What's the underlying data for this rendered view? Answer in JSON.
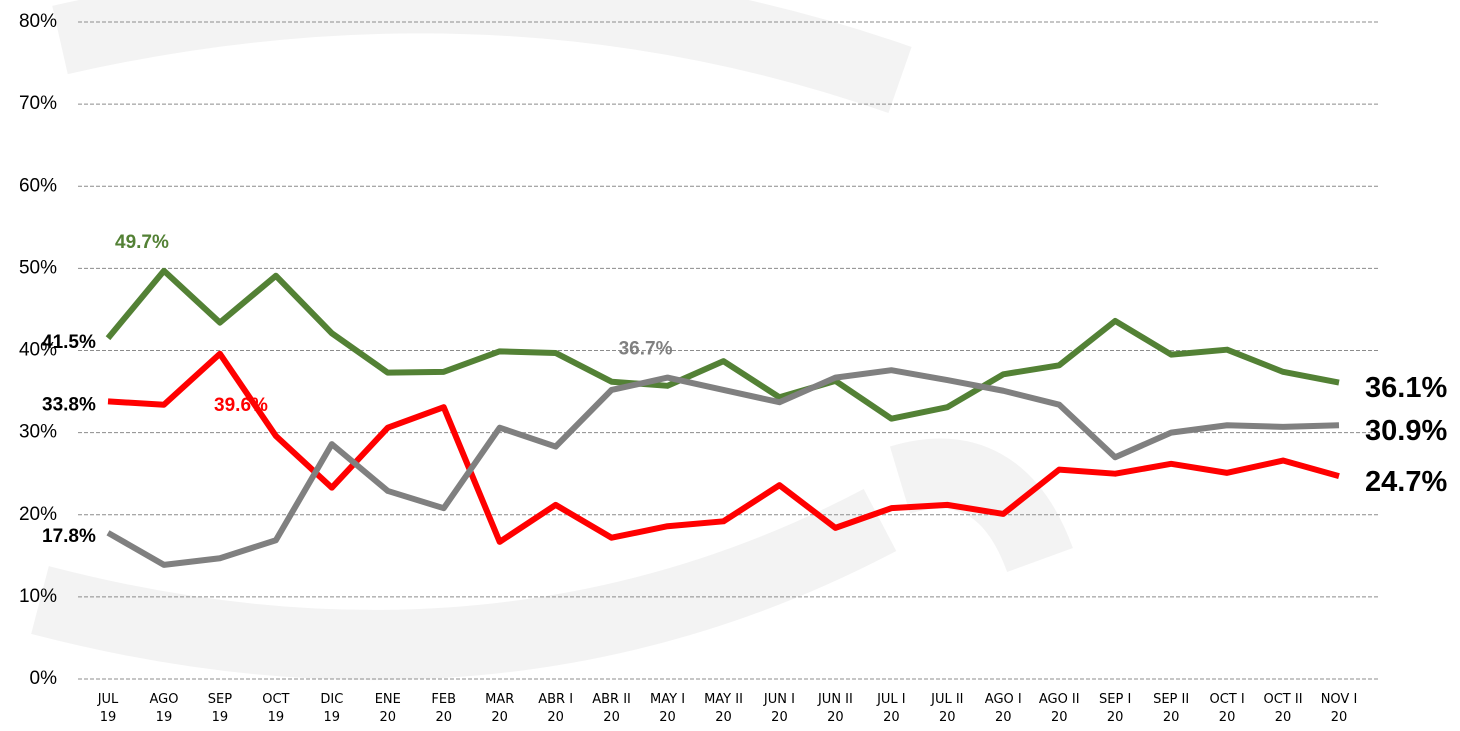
{
  "chart_data": {
    "type": "line",
    "categories": [
      "JUL\n19",
      "AGO\n19",
      "SEP\n19",
      "OCT\n19",
      "DIC\n19",
      "ENE\n20",
      "FEB\n20",
      "MAR\n20",
      "ABR I\n20",
      "ABR II\n20",
      "MAY I\n20",
      "MAY II\n20",
      "JUN I\n20",
      "JUN II\n20",
      "JUL I\n20",
      "JUL II\n20",
      "AGO I\n20",
      "AGO II\n20",
      "SEP I\n20",
      "SEP II\n20",
      "OCT I\n20",
      "OCT II\n20",
      "NOV I\n20"
    ],
    "series": [
      {
        "color": "#538135",
        "values": [
          41.5,
          49.7,
          43.4,
          49.1,
          42.1,
          37.3,
          37.4,
          39.9,
          39.7,
          36.2,
          35.7,
          38.7,
          34.3,
          36.3,
          31.7,
          33.1,
          37.1,
          38.2,
          43.6,
          39.5,
          40.1,
          37.4,
          36.1
        ],
        "value_labels": [
          "41.5%",
          "49.7%",
          null,
          null,
          null,
          null,
          null,
          null,
          null,
          null,
          null,
          null,
          null,
          null,
          null,
          null,
          null,
          null,
          null,
          null,
          null,
          null,
          "36.1%"
        ]
      },
      {
        "color": "#ff0000",
        "values": [
          33.8,
          33.4,
          39.6,
          29.6,
          23.3,
          30.6,
          33.1,
          16.7,
          21.2,
          17.2,
          18.6,
          19.2,
          23.6,
          18.4,
          20.8,
          21.2,
          20.1,
          25.5,
          25.0,
          26.2,
          25.1,
          26.6,
          24.7
        ],
        "value_labels": [
          "33.8%",
          null,
          "39.6%",
          null,
          null,
          null,
          null,
          null,
          null,
          null,
          null,
          null,
          null,
          null,
          null,
          null,
          null,
          null,
          null,
          null,
          null,
          null,
          "24.7%"
        ]
      },
      {
        "color": "#808080",
        "values": [
          17.8,
          13.9,
          14.7,
          16.9,
          28.6,
          22.9,
          20.8,
          30.6,
          28.3,
          35.2,
          36.7,
          35.2,
          33.7,
          36.7,
          37.6,
          36.4,
          35.1,
          33.4,
          27.0,
          30.0,
          30.9,
          30.7,
          30.9
        ],
        "value_labels": [
          "17.8%",
          null,
          null,
          null,
          null,
          null,
          null,
          null,
          null,
          null,
          "36.7%",
          null,
          null,
          null,
          null,
          null,
          null,
          null,
          null,
          null,
          null,
          null,
          "30.9%"
        ]
      }
    ],
    "ylim": [
      0,
      80
    ],
    "yticks": [
      {
        "value": 0,
        "label": "0%"
      },
      {
        "value": 10,
        "label": "10%"
      },
      {
        "value": 20,
        "label": "20%"
      },
      {
        "value": 30,
        "label": "30%"
      },
      {
        "value": 40,
        "label": "40%"
      },
      {
        "value": 50,
        "label": "50%"
      },
      {
        "value": 60,
        "label": "60%"
      },
      {
        "value": 70,
        "label": "70%"
      },
      {
        "value": 80,
        "label": "80%"
      }
    ],
    "grid": true
  }
}
